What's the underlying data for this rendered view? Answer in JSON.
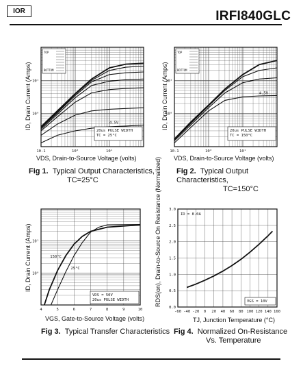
{
  "header": {
    "logo": "IOR",
    "part_number": "IRFI840GLC"
  },
  "captions": {
    "fig1_num": "Fig 1.",
    "fig1_line1": "Typical Output Characteristics,",
    "fig1_line2": "TC=25°C",
    "fig2_num": "Fig 2.",
    "fig2_line1": "Typical Output Characteristics,",
    "fig2_line2": "TC=150°C",
    "fig3_num": "Fig 3.",
    "fig3_line1": "Typical Transfer Characteristics",
    "fig4_num": "Fig 4.",
    "fig4_line1": "Normalized On-Resistance",
    "fig4_line2": "Vs. Temperature"
  },
  "chart_data": [
    {
      "type": "line",
      "title": "",
      "xlabel": "VDS, Drain-to-Source Voltage (volts)",
      "ylabel": "ID, Drain Current (Amps)",
      "x_scale": "log",
      "y_scale": "log",
      "xlim": [
        0.1,
        100
      ],
      "ylim": [
        0.1,
        100
      ],
      "x_ticks": [
        "10-1",
        "10⁰",
        "10¹"
      ],
      "y_ticks": [
        "10⁰",
        "10¹"
      ],
      "legend_label": "TOP / BOTTOM",
      "annotations": [
        "4.5V",
        "20us PULSE WIDTH",
        "TC = 25°C"
      ],
      "series": [
        {
          "x": [
            0.1,
            0.3,
            1,
            3,
            10,
            30,
            100
          ],
          "y": [
            0.4,
            1.2,
            4.0,
            11,
            24,
            31,
            33
          ]
        },
        {
          "x": [
            0.1,
            0.3,
            1,
            3,
            10,
            30,
            100
          ],
          "y": [
            0.38,
            1.1,
            3.8,
            10,
            20,
            25,
            27
          ]
        },
        {
          "x": [
            0.1,
            0.3,
            1,
            3,
            10,
            30,
            100
          ],
          "y": [
            0.36,
            1.05,
            3.5,
            9,
            15,
            17,
            18
          ]
        },
        {
          "x": [
            0.1,
            0.3,
            1,
            3,
            10,
            30,
            100
          ],
          "y": [
            0.33,
            0.95,
            3.0,
            7,
            9.5,
            10.5,
            11
          ]
        },
        {
          "x": [
            0.1,
            0.3,
            1,
            3,
            10,
            30,
            100
          ],
          "y": [
            0.3,
            0.8,
            2.2,
            4.2,
            5.3,
            5.7,
            6.0
          ]
        },
        {
          "x": [
            0.1,
            0.3,
            1,
            3,
            10,
            30,
            100
          ],
          "y": [
            0.22,
            0.48,
            0.9,
            1.2,
            1.35,
            1.42,
            1.5
          ]
        },
        {
          "x": [
            0.1,
            0.3,
            1,
            3,
            10,
            30,
            100
          ],
          "y": [
            0.13,
            0.22,
            0.3,
            0.36,
            0.4,
            0.42,
            0.45
          ]
        }
      ]
    },
    {
      "type": "line",
      "title": "",
      "xlabel": "VDS, Drain-to-Source Voltage (volts)",
      "ylabel": "ID, Drain Current (Amps)",
      "x_scale": "log",
      "y_scale": "log",
      "xlim": [
        0.1,
        100
      ],
      "ylim": [
        0.1,
        100
      ],
      "x_ticks": [
        "10-1",
        "10⁰",
        "10¹"
      ],
      "y_ticks": [
        "10⁰",
        "10¹"
      ],
      "legend_label": "TOP / BOTTOM",
      "annotations": [
        "4.5V",
        "20us PULSE WIDTH",
        "TC = 150°C"
      ],
      "series": [
        {
          "x": [
            0.1,
            0.3,
            1,
            3,
            10,
            30,
            100
          ],
          "y": [
            0.17,
            0.55,
            1.8,
            5.5,
            15,
            30,
            40
          ]
        },
        {
          "x": [
            0.1,
            0.3,
            1,
            3,
            10,
            30,
            100
          ],
          "y": [
            0.16,
            0.5,
            1.7,
            5,
            13,
            20,
            24
          ]
        },
        {
          "x": [
            0.1,
            0.3,
            1,
            3,
            10,
            30,
            100
          ],
          "y": [
            0.15,
            0.45,
            1.5,
            4.2,
            8.5,
            11,
            12
          ]
        },
        {
          "x": [
            0.1,
            0.3,
            1,
            3,
            10,
            30,
            100
          ],
          "y": [
            0.13,
            0.38,
            1.2,
            2.5,
            3.2,
            3.4,
            3.5
          ]
        }
      ]
    },
    {
      "type": "line",
      "title": "",
      "xlabel": "VGS, Gate-to-Source Voltage (volts)",
      "ylabel": "ID, Drain Current (Amps)",
      "x_scale": "linear",
      "y_scale": "log",
      "xlim": [
        4,
        10
      ],
      "ylim": [
        0.1,
        100
      ],
      "x_ticks": [
        "4",
        "5",
        "6",
        "7",
        "8",
        "9",
        "10"
      ],
      "y_ticks": [
        "10⁰",
        "10¹"
      ],
      "annotations": [
        "VDS = 50V",
        "20us PULSE WIDTH"
      ],
      "series": [
        {
          "name": "150°C",
          "x": [
            4.2,
            4.5,
            5,
            5.5,
            6,
            6.5,
            7,
            8,
            10
          ],
          "y": [
            0.1,
            0.3,
            1.2,
            3.5,
            8,
            14,
            20,
            27,
            32
          ]
        },
        {
          "name": "25°C",
          "x": [
            4.6,
            5,
            5.5,
            6,
            6.5,
            7,
            7.5,
            8,
            10
          ],
          "y": [
            0.1,
            0.3,
            1.1,
            3.5,
            9,
            19,
            27,
            32,
            33
          ]
        }
      ]
    },
    {
      "type": "line",
      "title": "",
      "xlabel": "TJ, Junction Temperature (°C)",
      "ylabel": "RDS(on), Drain-to-Source On Resistance (Normalized)",
      "x_scale": "linear",
      "y_scale": "linear",
      "xlim": [
        -60,
        160
      ],
      "ylim": [
        0,
        3
      ],
      "x_ticks": [
        "-60",
        "-40",
        "-20",
        "0",
        "20",
        "40",
        "60",
        "80",
        "100",
        "120",
        "140",
        "160"
      ],
      "y_ticks": [
        "0.0",
        "0.5",
        "1.0",
        "1.5",
        "2.0",
        "2.5",
        "3.0"
      ],
      "annotations": [
        "ID = 8.0A",
        "VGS = 10V"
      ],
      "series": [
        {
          "x": [
            -40,
            -20,
            0,
            20,
            40,
            60,
            80,
            100,
            120,
            140,
            150
          ],
          "y": [
            0.6,
            0.7,
            0.82,
            0.95,
            1.1,
            1.27,
            1.46,
            1.68,
            1.92,
            2.18,
            2.32
          ]
        }
      ]
    }
  ]
}
